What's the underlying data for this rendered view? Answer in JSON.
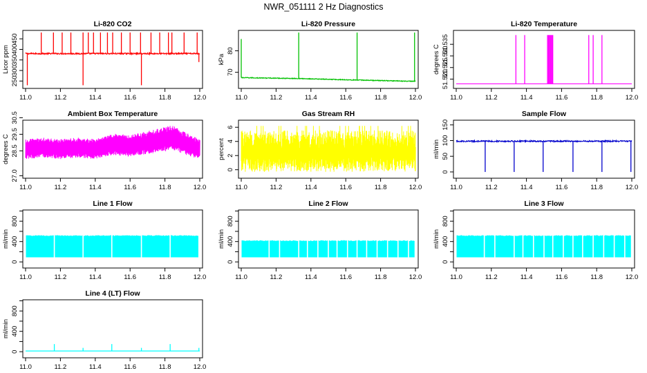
{
  "figure_title": "NWR_051111  2 Hz Diagnostics",
  "chart_data": [
    {
      "type": "line",
      "title": "Li-820 CO2",
      "ylabel": "Licor ppm",
      "color": "#ff0000",
      "xlim": [
        11.0,
        12.0
      ],
      "x_ticks": [
        "11.0",
        "11.2",
        "11.4",
        "11.6",
        "11.8",
        "12.0"
      ],
      "ylim": [
        215,
        490
      ],
      "y_ticks": [
        "250",
        "300",
        "350",
        "400",
        "450"
      ],
      "baseline": 380,
      "noise": 3,
      "series": [
        {
          "name": "spikes",
          "x": [
            11.09,
            11.16,
            11.21,
            11.26,
            11.33,
            11.36,
            11.39,
            11.43,
            11.47,
            11.5,
            11.55,
            11.6,
            11.66,
            11.72,
            11.77,
            11.82,
            11.84,
            11.91,
            11.985
          ],
          "values": [
            480,
            480,
            480,
            480,
            480,
            480,
            480,
            480,
            480,
            480,
            480,
            480,
            480,
            480,
            480,
            480,
            480,
            480,
            480
          ]
        },
        {
          "name": "dips",
          "x": [
            11.01,
            11.33,
            11.665,
            11.995
          ],
          "values": [
            230,
            230,
            230,
            340
          ]
        }
      ]
    },
    {
      "type": "line",
      "title": "Li-820 Pressure",
      "ylabel": "kPa",
      "color": "#00c000",
      "xlim": [
        11.0,
        12.0
      ],
      "x_ticks": [
        "11.0",
        "11.2",
        "11.4",
        "11.6",
        "11.8",
        "12.0"
      ],
      "ylim": [
        62.5,
        89.5
      ],
      "y_ticks": [
        "70",
        "80"
      ],
      "series": [
        {
          "name": "pressure",
          "x": [
            11.0,
            11.33,
            11.665,
            11.995
          ],
          "values": [
            67.5,
            67.1,
            66.4,
            65.8
          ]
        },
        {
          "name": "spikes",
          "x": [
            11.0,
            11.33,
            11.665,
            11.995
          ],
          "values": [
            85.5,
            88.5,
            88.5,
            88.5
          ]
        }
      ]
    },
    {
      "type": "line",
      "title": "Li-820 Temperature",
      "ylabel": "degrees C",
      "color": "#ff00ff",
      "xlim": [
        11.0,
        12.0
      ],
      "x_ticks": [
        "11.0",
        "11.2",
        "11.4",
        "11.6",
        "11.8",
        "12.0"
      ],
      "ylim": [
        51.516,
        51.541
      ],
      "y_ticks": [
        "51.520",
        "51.525",
        "51.530",
        "51.535"
      ],
      "baseline": 51.518,
      "series": [
        {
          "name": "spikes",
          "x": [
            11.34,
            11.39,
            11.52,
            11.525,
            11.53,
            11.535,
            11.54,
            11.545,
            11.55,
            11.755,
            11.78,
            11.83
          ],
          "values": [
            51.539,
            51.539,
            51.539,
            51.539,
            51.539,
            51.539,
            51.539,
            51.539,
            51.539,
            51.539,
            51.539,
            51.539
          ]
        }
      ]
    },
    {
      "type": "line",
      "title": "Ambient Box Temperature",
      "ylabel": "degrees C",
      "color": "#ff00ff",
      "xlim": [
        11.0,
        12.0
      ],
      "x_ticks": [
        "11.0",
        "11.2",
        "11.4",
        "11.6",
        "11.8",
        "12.0"
      ],
      "ylim": [
        26.85,
        30.35
      ],
      "y_ticks": [
        "27.0",
        "28.5",
        "29.5",
        "30.5"
      ],
      "band": {
        "x": [
          11.0,
          11.1,
          11.2,
          11.3,
          11.4,
          11.5,
          11.6,
          11.7,
          11.8,
          11.85,
          11.9,
          12.0
        ],
        "center": [
          28.6,
          28.7,
          28.6,
          28.7,
          28.6,
          28.9,
          28.8,
          29.0,
          29.2,
          29.3,
          29.0,
          28.6
        ],
        "halfwidth": [
          0.6,
          0.6,
          0.6,
          0.6,
          0.6,
          0.65,
          0.65,
          0.7,
          0.75,
          0.75,
          0.7,
          0.6
        ]
      }
    },
    {
      "type": "line",
      "title": "Gas Stream RH",
      "ylabel": "percent",
      "color": "#ffff00",
      "xlim": [
        11.0,
        12.0
      ],
      "x_ticks": [
        "11.0",
        "11.2",
        "11.4",
        "11.6",
        "11.8",
        "12.0"
      ],
      "ylim": [
        -1.2,
        7.0
      ],
      "y_ticks": [
        "0",
        "2",
        "4",
        "6"
      ],
      "band": {
        "x": [
          11.0,
          12.0
        ],
        "low": [
          -0.3,
          -0.3
        ],
        "high": [
          5.6,
          5.6
        ],
        "peak": 6.2
      }
    },
    {
      "type": "line",
      "title": "Sample Flow",
      "ylabel": "ml/min",
      "color": "#0000cc",
      "xlim": [
        11.0,
        12.0
      ],
      "x_ticks": [
        "11.0",
        "11.2",
        "11.4",
        "11.6",
        "11.8",
        "12.0"
      ],
      "ylim": [
        -20,
        165
      ],
      "y_ticks": [
        "0",
        "50",
        "100",
        "150"
      ],
      "baseline": 98,
      "noise": 2,
      "series": [
        {
          "name": "dips",
          "x": [
            11.165,
            11.33,
            11.495,
            11.665,
            11.83,
            11.995
          ],
          "values": [
            0,
            0,
            0,
            0,
            0,
            0
          ]
        }
      ]
    },
    {
      "type": "line",
      "title": "Line 1 Flow",
      "ylabel": "ml/min",
      "color": "#00ffff",
      "xlim": [
        11.0,
        12.0
      ],
      "x_ticks": [
        "11.0",
        "11.2",
        "11.4",
        "11.6",
        "11.8",
        "12.0"
      ],
      "ylim": [
        -120,
        1020
      ],
      "y_ticks": [
        "0",
        "400",
        "800"
      ],
      "y_minor_ticks": [
        200,
        600,
        1000
      ],
      "band": {
        "low": 90,
        "high": 510
      },
      "gaps": [
        11.165,
        11.33,
        11.495,
        11.665,
        11.83,
        11.995
      ]
    },
    {
      "type": "line",
      "title": "Line 2 Flow",
      "ylabel": "ml/min",
      "color": "#00ffff",
      "xlim": [
        11.0,
        12.0
      ],
      "x_ticks": [
        "11.0",
        "11.2",
        "11.4",
        "11.6",
        "11.8",
        "12.0"
      ],
      "ylim": [
        -120,
        1020
      ],
      "y_ticks": [
        "0",
        "400",
        "800"
      ],
      "y_minor_ticks": [
        200,
        600,
        1000
      ],
      "band": {
        "low": 90,
        "high": 410
      },
      "gaps": [
        11.16,
        11.22,
        11.33,
        11.38,
        11.44,
        11.5,
        11.55,
        11.61,
        11.665,
        11.72,
        11.78,
        11.84,
        11.9,
        11.96
      ]
    },
    {
      "type": "line",
      "title": "Line 3 Flow",
      "ylabel": "ml/min",
      "color": "#00ffff",
      "xlim": [
        11.0,
        12.0
      ],
      "x_ticks": [
        "11.0",
        "11.2",
        "11.4",
        "11.6",
        "11.8",
        "12.0"
      ],
      "ylim": [
        -120,
        1020
      ],
      "y_ticks": [
        "0",
        "400",
        "800"
      ],
      "y_minor_ticks": [
        200,
        600,
        1000
      ],
      "band": {
        "low": 90,
        "high": 510
      },
      "gaps": [
        11.16,
        11.22,
        11.33,
        11.38,
        11.44,
        11.5,
        11.55,
        11.61,
        11.665,
        11.72,
        11.78,
        11.84,
        11.9,
        11.96
      ]
    },
    {
      "type": "line",
      "title": "Line 4 (LT) Flow",
      "ylabel": "ml/min",
      "color": "#00ffff",
      "xlim": [
        11.0,
        12.0
      ],
      "x_ticks": [
        "11.0",
        "11.2",
        "11.4",
        "11.6",
        "11.8",
        "12.0"
      ],
      "ylim": [
        -120,
        1020
      ],
      "y_ticks": [
        "0",
        "400",
        "800"
      ],
      "y_minor_ticks": [
        200,
        600,
        1000
      ],
      "baseline": 15,
      "series": [
        {
          "name": "spikes",
          "x": [
            11.165,
            11.33,
            11.495,
            11.665,
            11.83,
            11.995
          ],
          "values": [
            150,
            75,
            150,
            75,
            150,
            75
          ]
        }
      ]
    }
  ]
}
